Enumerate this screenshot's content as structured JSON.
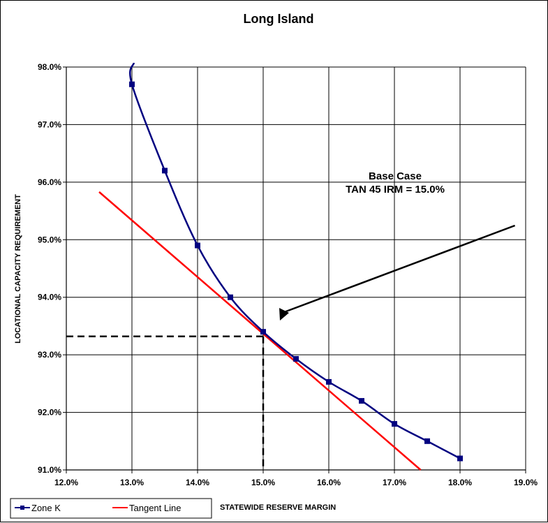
{
  "chart_data": {
    "type": "line",
    "title": "Long Island",
    "xlabel": "STATEWIDE RESERVE MARGIN",
    "ylabel": "LOCATIONAL CAPACITY REQUIREMENT",
    "xlim": [
      12.0,
      19.0
    ],
    "ylim": [
      91.0,
      98.0
    ],
    "x_ticks": [
      "12.0%",
      "13.0%",
      "14.0%",
      "15.0%",
      "16.0%",
      "17.0%",
      "18.0%",
      "19.0%"
    ],
    "y_ticks": [
      "98.0%",
      "97.0%",
      "96.0%",
      "95.0%",
      "94.0%",
      "93.0%",
      "92.0%",
      "91.0%"
    ],
    "grid": true,
    "legend_position": "bottom-left",
    "series": [
      {
        "name": "Zone K",
        "color": "#000080",
        "marker": "square",
        "x": [
          13.0,
          13.5,
          14.0,
          14.5,
          15.0,
          15.5,
          16.0,
          16.5,
          17.0,
          17.5,
          18.0
        ],
        "y": [
          97.7,
          96.2,
          94.9,
          94.0,
          93.4,
          92.93,
          92.53,
          92.2,
          91.8,
          91.5,
          91.2
        ]
      },
      {
        "name": "Tangent Line",
        "color": "#ff0000",
        "marker": "none",
        "x": [
          12.5,
          17.4
        ],
        "y": [
          95.83,
          91.0
        ]
      }
    ],
    "reference_lines": {
      "x": 15.0,
      "y": 93.32,
      "style": "dashed",
      "color": "#000000"
    },
    "annotation": {
      "lines": [
        "Base Case",
        "TAN 45 IRM = 15.0%"
      ],
      "arrow_from": [
        14.9,
        94.2
      ],
      "arrow_to": [
        15.2,
        93.55
      ]
    }
  }
}
